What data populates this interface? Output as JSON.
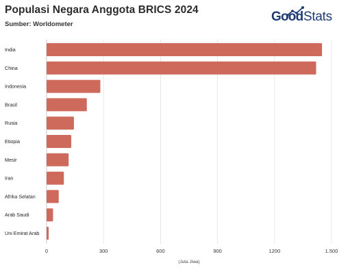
{
  "header": {
    "title": "Populasi Negara Anggota BRICS 2024",
    "source": "Sumber: Worldometer"
  },
  "logo": {
    "text_bold": "Good",
    "text_regular": "Stats",
    "color": "#1f3b73"
  },
  "chart_data": {
    "type": "bar",
    "orientation": "horizontal",
    "title": "Populasi Negara Anggota BRICS 2024",
    "subtitle": "Sumber: Worldometer",
    "xlabel": "(Juta Jiwa)",
    "ylabel": "",
    "categories": [
      "India",
      "China",
      "Indonesia",
      "Brasil",
      "Rusia",
      "Etiopia",
      "Mesir",
      "Iran",
      "Afrika Selatan",
      "Arab Saudi",
      "Uni Emirat Arab"
    ],
    "values": [
      1450,
      1419,
      283,
      212,
      144,
      130,
      116,
      91,
      64,
      34,
      11
    ],
    "xlim": [
      0,
      1500
    ],
    "ticks": [
      0,
      300,
      600,
      900,
      1200,
      1500
    ],
    "tick_labels": [
      "0",
      "300",
      "600",
      "900",
      "1200",
      "1.500"
    ],
    "grid": "vertical",
    "bar_color": "#cd6a5b"
  }
}
